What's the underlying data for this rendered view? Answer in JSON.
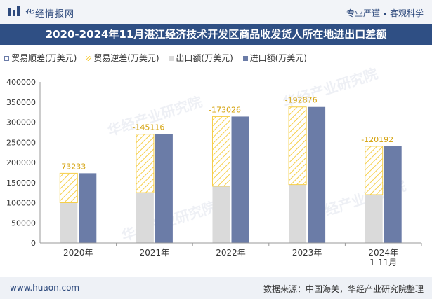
{
  "header": {
    "brand": "华经情报网",
    "tag_left": "专业严谨",
    "tag_right": "客观科学"
  },
  "title": "2020-2024年11月湛江经济技术开发区商品收发货人所在地进出口差额",
  "legend": {
    "positive": "贸易顺差(万美元)",
    "negative": "贸易逆差(万美元)",
    "export": "出口额(万美元)",
    "import": "进口额(万美元)"
  },
  "colors": {
    "export": "#dadada",
    "import": "#6b7ca7",
    "deficit_stroke": "#f6cf4a",
    "label": "#d4a10a",
    "title_bg": "#2f4f84"
  },
  "watermark": "华经产业研究院",
  "chart_data": {
    "type": "bar",
    "categories": [
      "2020年",
      "2021年",
      "2022年",
      "2023年",
      "2024年\n1-11月"
    ],
    "series": [
      {
        "name": "出口额(万美元)",
        "values": [
          100000,
          125000,
          141000,
          145000,
          120000
        ]
      },
      {
        "name": "进口额(万美元)",
        "values": [
          173233,
          270116,
          314026,
          337876,
          240192
        ]
      },
      {
        "name": "贸易逆差(万美元)",
        "values": [
          -73233,
          -145116,
          -173026,
          -192876,
          -120192
        ]
      }
    ],
    "data_labels": [
      "-73233",
      "-145116",
      "-173026",
      "-192876",
      "-120192"
    ],
    "ylim": [
      0,
      400000
    ],
    "yticks": [
      0,
      50000,
      100000,
      150000,
      200000,
      250000,
      300000,
      350000,
      400000
    ]
  },
  "footer": {
    "url": "www.huaon.com",
    "source": "数据来源：中国海关，华经产业研究院整理"
  }
}
